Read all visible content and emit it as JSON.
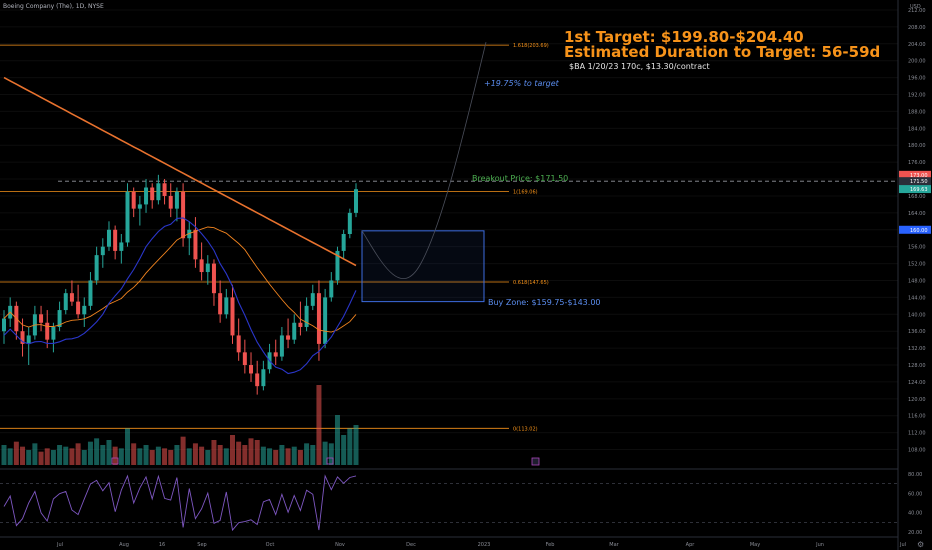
{
  "header": {
    "title": "Boeing Company (The), 1D, NYSE"
  },
  "annotations": {
    "target_line1": "1st Target: $199.80-$204.40",
    "target_line2": "Estimated Duration to Target: 56-59d",
    "contract": "$BA 1/20/23 170c, $13.30/contract",
    "pct_to_target": "+19.75% to target",
    "breakout": "Breakout Price: $171.50",
    "buy_zone": "Buy Zone: $159.75-$143.00"
  },
  "colors": {
    "up": "#26a69a",
    "down": "#ef5350",
    "fib": "#f7931a",
    "ma200": "#e8722e",
    "ma50": "#f0831f",
    "ma_blue": "#2a36c9",
    "buyzone": "#3d6de0",
    "breakout": "#4caf50"
  },
  "chart_data": {
    "type": "candlestick",
    "title": "Boeing Company (The), 1D, NYSE",
    "y_unit": "USD",
    "ylim": [
      106,
      212
    ],
    "x_axis_labels": [
      "Jul",
      "Aug",
      "16",
      "Sep",
      "Oct",
      "Nov",
      "Dec",
      "2023",
      "Feb",
      "Mar",
      "Apr",
      "May",
      "Jun",
      "Jul"
    ],
    "y_tick_labels": [
      "108.00",
      "112.00",
      "116.00",
      "120.00",
      "124.00",
      "128.00",
      "132.00",
      "136.00",
      "140.00",
      "144.00",
      "148.00",
      "152.00",
      "156.00",
      "160.00",
      "164.00",
      "168.00",
      "172.00",
      "176.00",
      "180.00",
      "184.00",
      "188.00",
      "192.00",
      "196.00",
      "200.00",
      "204.00",
      "208.00",
      "212.00"
    ],
    "price_badges": [
      {
        "label": "ASK",
        "value": "173.00",
        "color": "#ef5350"
      },
      {
        "label": "",
        "value": "171.50",
        "color": "#2a2e39"
      },
      {
        "label": "BA",
        "value": "169.63",
        "color": "#26a69a"
      },
      {
        "label": "BA2",
        "value": "160.00",
        "color": "#2962ff"
      }
    ],
    "fib_levels": [
      {
        "label": "1.618(203.69)",
        "price": 203.69
      },
      {
        "label": "1(169.06)",
        "price": 169.06
      },
      {
        "label": "0.618(147.65)",
        "price": 147.65
      },
      {
        "label": "0(113.02)",
        "price": 113.02
      }
    ],
    "breakout_price": 171.5,
    "buy_zone": {
      "low": 143.0,
      "high": 159.75
    },
    "target_range": [
      199.8,
      204.4
    ],
    "candles": [
      [
        136,
        141,
        133,
        139
      ],
      [
        139,
        144,
        137,
        142
      ],
      [
        142,
        143,
        134,
        136
      ],
      [
        136,
        139,
        130,
        133
      ],
      [
        133,
        137,
        128,
        135
      ],
      [
        135,
        142,
        134,
        140
      ],
      [
        140,
        142,
        136,
        138
      ],
      [
        138,
        141,
        132,
        134
      ],
      [
        134,
        138,
        131,
        137
      ],
      [
        137,
        143,
        136,
        141
      ],
      [
        141,
        146,
        140,
        145
      ],
      [
        145,
        148,
        142,
        143
      ],
      [
        143,
        147,
        139,
        140
      ],
      [
        140,
        144,
        137,
        142
      ],
      [
        142,
        150,
        141,
        148
      ],
      [
        148,
        156,
        147,
        154
      ],
      [
        154,
        158,
        151,
        156
      ],
      [
        156,
        162,
        155,
        160
      ],
      [
        160,
        161,
        153,
        155
      ],
      [
        155,
        159,
        152,
        157
      ],
      [
        157,
        171,
        156,
        169
      ],
      [
        169,
        170,
        163,
        165
      ],
      [
        165,
        168,
        161,
        166
      ],
      [
        166,
        172,
        164,
        170
      ],
      [
        170,
        171,
        165,
        167
      ],
      [
        167,
        173,
        166,
        171
      ],
      [
        171,
        172,
        166,
        168
      ],
      [
        168,
        171,
        163,
        165
      ],
      [
        165,
        170,
        162,
        169
      ],
      [
        169,
        171,
        156,
        158
      ],
      [
        158,
        162,
        154,
        160
      ],
      [
        160,
        163,
        151,
        153
      ],
      [
        153,
        157,
        148,
        150
      ],
      [
        150,
        154,
        147,
        152
      ],
      [
        152,
        153,
        142,
        145
      ],
      [
        145,
        148,
        138,
        140
      ],
      [
        140,
        146,
        139,
        144
      ],
      [
        144,
        147,
        133,
        135
      ],
      [
        135,
        139,
        129,
        131
      ],
      [
        131,
        134,
        126,
        128
      ],
      [
        128,
        131,
        124,
        126
      ],
      [
        126,
        129,
        121,
        123
      ],
      [
        123,
        129,
        122,
        127
      ],
      [
        127,
        133,
        126,
        131
      ],
      [
        131,
        134,
        128,
        130
      ],
      [
        130,
        137,
        129,
        135
      ],
      [
        135,
        139,
        132,
        134
      ],
      [
        134,
        140,
        133,
        138
      ],
      [
        138,
        143,
        135,
        137
      ],
      [
        137,
        144,
        136,
        142
      ],
      [
        142,
        147,
        141,
        145
      ],
      [
        145,
        148,
        129,
        133
      ],
      [
        133,
        146,
        132,
        144
      ],
      [
        144,
        150,
        143,
        148
      ],
      [
        148,
        156,
        147,
        155
      ],
      [
        155,
        160,
        153,
        159
      ],
      [
        159,
        165,
        158,
        164
      ],
      [
        164,
        171,
        163,
        169.6
      ]
    ],
    "volume": [
      12,
      10,
      14,
      11,
      9,
      13,
      8,
      10,
      9,
      12,
      11,
      10,
      13,
      9,
      14,
      16,
      12,
      15,
      11,
      10,
      22,
      13,
      10,
      12,
      9,
      11,
      10,
      9,
      12,
      17,
      10,
      13,
      11,
      9,
      15,
      12,
      10,
      18,
      14,
      12,
      16,
      15,
      11,
      10,
      9,
      12,
      10,
      11,
      9,
      13,
      12,
      48,
      14,
      13,
      30,
      18,
      22,
      24
    ],
    "rsi": {
      "ylim": [
        20,
        80
      ],
      "ticks": [
        "80.00",
        "60.00",
        "40.00",
        "20.00"
      ],
      "levels": [
        70,
        30
      ]
    }
  }
}
